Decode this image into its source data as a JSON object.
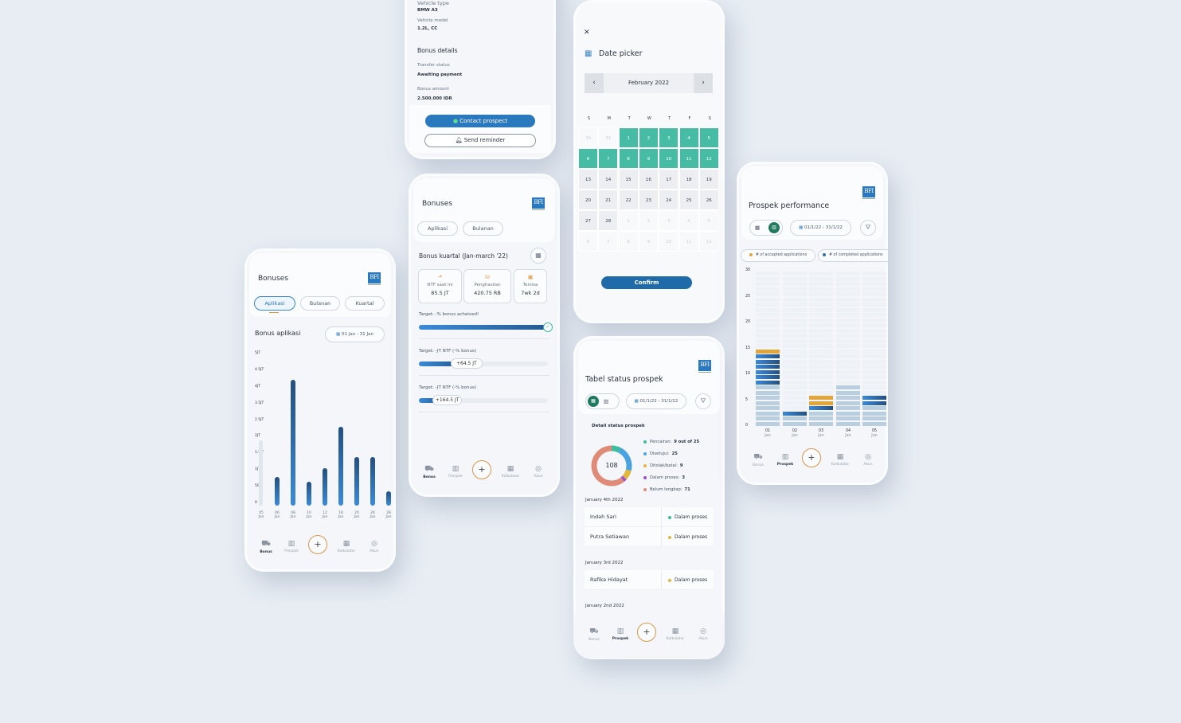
{
  "colors": {
    "background": "#e8edf4",
    "primary": "#2a78bd",
    "teal": "#3dbda0",
    "orange": "#e2a53a",
    "dark_blue": "#255a90"
  },
  "nav": {
    "bonus": "Bonus",
    "prospek": "Prospek",
    "kalkulator": "Kalkulator",
    "akun": "Akun",
    "add": "+"
  },
  "logo": "BFI",
  "screen_bonus_aplikasi": {
    "title": "Bonuses",
    "tabs": [
      "Aplikasi",
      "Bulanan",
      "Kuartal"
    ],
    "active_tab": "Aplikasi",
    "section_title": "Bonus aplikasi",
    "date_range": "01 Jan - 31 Jan",
    "chart_data": {
      "type": "bar",
      "y_tick_labels": [
        "5JT",
        "4.5JT",
        "4JT",
        "3.5JT",
        "2.5JT",
        "2JT",
        "1.5JT",
        "1JT",
        "500",
        "0"
      ],
      "categories": [
        "05 Jan",
        "06 Jan",
        "08 Jan",
        "10 Jan",
        "12 Jan",
        "18 Jan",
        "20 Jan",
        "26 Jan",
        "28 Jan"
      ],
      "values_jt": [
        1.9,
        0.8,
        4.2,
        0.65,
        1.05,
        2.3,
        1.4,
        1.4,
        0.35
      ],
      "highlighted": [
        false,
        true,
        true,
        true,
        true,
        true,
        true,
        true,
        true
      ]
    }
  },
  "screen_details": {
    "fields": [
      {
        "label": "Vehicle type",
        "value": "BMW A3"
      },
      {
        "label": "Vehicle model",
        "value": "1.2L, CC"
      }
    ],
    "section_title": "Bonus details",
    "bonus_fields": [
      {
        "label": "Transfer status",
        "value": "Awaiting payment"
      },
      {
        "label": "Bonus amount",
        "value": "2.500.000 IDR"
      }
    ],
    "contact_button": "Contact prospect",
    "reminder_button": "Send reminder"
  },
  "screen_bonus_kuartal": {
    "title": "Bonuses",
    "tabs": [
      "Aplikasi",
      "Bulanan"
    ],
    "section_title": "Bonus kuartal (Jan-march '22)",
    "cards": [
      {
        "label": "NTF saat ini",
        "value": "85.5 JT"
      },
      {
        "label": "Penghasilan",
        "value": "420.75 RB"
      },
      {
        "label": "Tersisa",
        "value": "7wk 2d"
      }
    ],
    "targets": [
      {
        "label": "Target: -% bonus acheived!",
        "progress": 100,
        "badge": ""
      },
      {
        "label": "Target: -JT NTF (-% bonus)",
        "progress": 32,
        "badge": "+64.5 JT"
      },
      {
        "label": "Target: -JT NTF (-% bonus)",
        "progress": 18,
        "badge": "+164.5 JT"
      }
    ]
  },
  "screen_date_picker": {
    "title": "Date picker",
    "month": "February 2022",
    "weekdays": [
      "S",
      "M",
      "T",
      "W",
      "T",
      "F",
      "S"
    ],
    "days": [
      [
        "30",
        "31",
        "1",
        "2",
        "3",
        "4",
        "5"
      ],
      [
        "6",
        "7",
        "8",
        "9",
        "10",
        "11",
        "12"
      ],
      [
        "13",
        "14",
        "15",
        "16",
        "17",
        "18",
        "19"
      ],
      [
        "20",
        "21",
        "22",
        "23",
        "24",
        "25",
        "26"
      ],
      [
        "27",
        "28",
        "1",
        "2",
        "3",
        "4",
        "5"
      ],
      [
        "6",
        "7",
        "8",
        "9",
        "10",
        "11",
        "12"
      ]
    ],
    "selected_range": [
      "1",
      "12"
    ],
    "confirm_button": "Confirm"
  },
  "screen_tabel": {
    "title": "Tabel status prospek",
    "date_range": "01/1/22 - 31/1/22",
    "detail_title": "Detail status prospek",
    "donut_total": "108",
    "statuses": [
      {
        "label": "Pencairan:",
        "value": "9 out of 25",
        "count": 9,
        "color": "#3dbda0"
      },
      {
        "label": "Disetujui:",
        "value": "25",
        "count": 25,
        "color": "#4aa3e0"
      },
      {
        "label": "Ditolak/batal:",
        "value": "9",
        "count": 9,
        "color": "#e2b83a"
      },
      {
        "label": "Dalam proses:",
        "value": "3",
        "count": 3,
        "color": "#9b4fd0"
      },
      {
        "label": "Belum lengkap:",
        "value": "71",
        "count": 71,
        "color": "#e08a78"
      }
    ],
    "groups": [
      {
        "date": "January 4th 2022",
        "rows": [
          {
            "name": "Indah Sari",
            "status": "Dalam proses",
            "color": "#3dbda0"
          },
          {
            "name": "Putra Setiawan",
            "status": "Dalam proses",
            "color": "#e2b83a"
          }
        ]
      },
      {
        "date": "January 3rd 2022",
        "rows": [
          {
            "name": "Rafika Hidayat",
            "status": "Dalam proses",
            "color": "#e2b83a"
          }
        ]
      },
      {
        "date": "January 2nd 2022",
        "rows": []
      }
    ]
  },
  "screen_performance": {
    "title": "Prospek performance",
    "date_range": "01/1/22 - 31/1/22",
    "chart_data": {
      "type": "bar",
      "stacked": true,
      "ylim": [
        0,
        30
      ],
      "y_ticks": [
        "30",
        "25",
        "20",
        "15",
        "10",
        "5",
        "0"
      ],
      "categories": [
        [
          "01",
          "Jan"
        ],
        [
          "02",
          "Jan"
        ],
        [
          "03",
          "Jan"
        ],
        [
          "04",
          "Jan"
        ],
        [
          "05",
          "Jan"
        ]
      ],
      "legend": [
        "# of accepted applications",
        "# of completed applications"
      ],
      "series": [
        {
          "values": [
            8,
            2,
            3,
            8,
            4
          ],
          "color": "#b9cfe0"
        },
        {
          "name": "# of completed applications",
          "values": [
            6,
            1,
            1,
            0,
            2
          ],
          "color": "#2f6fb5"
        },
        {
          "name": "# of accepted applications",
          "values": [
            1,
            0,
            2,
            0,
            0
          ],
          "color": "#e2a53a"
        }
      ]
    }
  }
}
